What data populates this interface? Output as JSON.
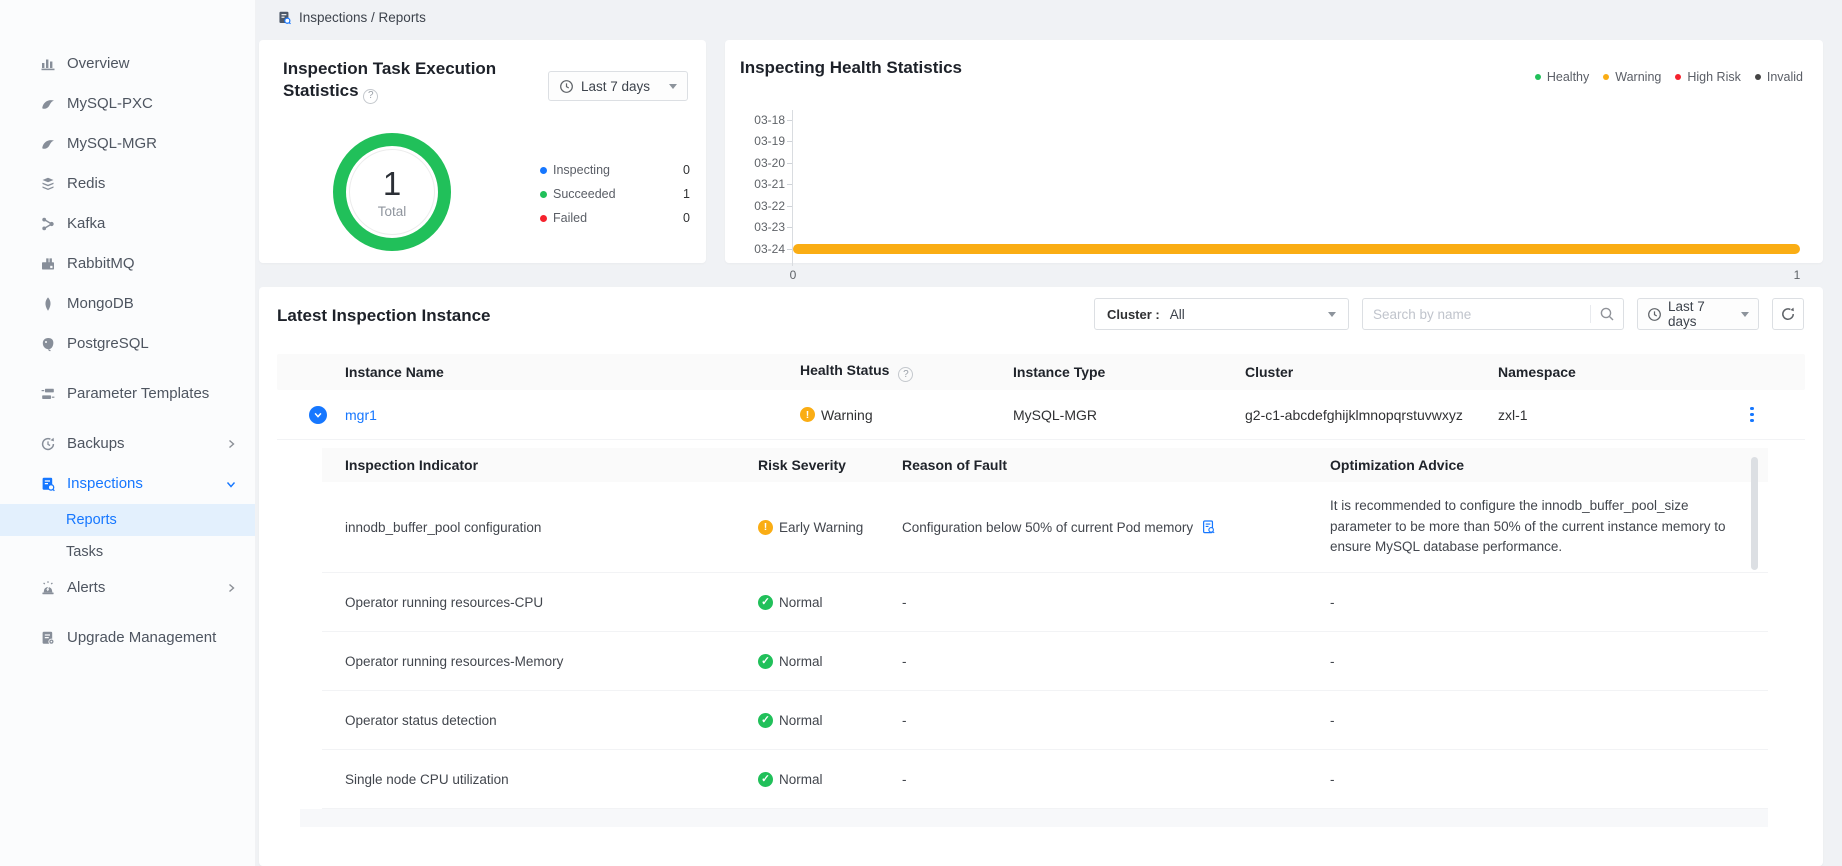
{
  "icons": {
    "help": "?",
    "warning_glyph": "!",
    "check_glyph": "✓"
  },
  "colors": {
    "primary": "#1677ff",
    "healthy_green": "#21c05a",
    "warning_orange": "#faad14",
    "high_risk_red": "#f5222d",
    "invalid_dark": "#454545",
    "selected_item_bg": "#e3f0fd"
  },
  "breadcrumb": {
    "text": "Inspections / Reports"
  },
  "sidebar": {
    "items": [
      {
        "label": "Overview"
      },
      {
        "label": "MySQL-PXC"
      },
      {
        "label": "MySQL-MGR"
      },
      {
        "label": "Redis"
      },
      {
        "label": "Kafka"
      },
      {
        "label": "RabbitMQ"
      },
      {
        "label": "MongoDB"
      },
      {
        "label": "PostgreSQL"
      },
      {
        "label": "Parameter Templates"
      },
      {
        "label": "Backups"
      },
      {
        "label": "Inspections"
      },
      {
        "label": "Reports"
      },
      {
        "label": "Tasks"
      },
      {
        "label": "Alerts"
      },
      {
        "label": "Upgrade Management"
      }
    ]
  },
  "task_card": {
    "title": "Inspection Task Execution Statistics",
    "time_filter": "Last 7 days",
    "donut_total_value": "1",
    "donut_total_label": "Total",
    "legend": [
      {
        "label": "Inspecting",
        "value": "0"
      },
      {
        "label": "Succeeded",
        "value": "1"
      },
      {
        "label": "Failed",
        "value": "0"
      }
    ],
    "chart_data": {
      "type": "pie",
      "subtype": "donut",
      "total": 1,
      "slices": [
        {
          "label": "Inspecting",
          "value": 0,
          "color": "#1677ff"
        },
        {
          "label": "Succeeded",
          "value": 1,
          "color": "#21c05a"
        },
        {
          "label": "Failed",
          "value": 0,
          "color": "#f5222d"
        }
      ]
    }
  },
  "health_card": {
    "title": "Inspecting Health Statistics",
    "chart_data": {
      "type": "bar",
      "orientation": "horizontal",
      "categories": [
        "03-18",
        "03-19",
        "03-20",
        "03-21",
        "03-22",
        "03-23",
        "03-24"
      ],
      "series": [
        {
          "name": "Healthy",
          "color": "#21c05a",
          "values": [
            0,
            0,
            0,
            0,
            0,
            0,
            0
          ]
        },
        {
          "name": "Warning",
          "color": "#faad14",
          "values": [
            0,
            0,
            0,
            0,
            0,
            0,
            1
          ]
        },
        {
          "name": "High Risk",
          "color": "#f5222d",
          "values": [
            0,
            0,
            0,
            0,
            0,
            0,
            0
          ]
        },
        {
          "name": "Invalid",
          "color": "#454545",
          "values": [
            0,
            0,
            0,
            0,
            0,
            0,
            0
          ]
        }
      ],
      "xlim": [
        0,
        1
      ],
      "x_tick_labels": [
        "0",
        "1"
      ],
      "legend_position": "top-right",
      "grid": false
    }
  },
  "table_section": {
    "title": "Latest Inspection Instance",
    "cluster_filter_label": "Cluster :",
    "cluster_filter_value": "All",
    "search_placeholder": "Search by name",
    "time_filter": "Last 7 days",
    "columns": {
      "instance_name": "Instance Name",
      "health_status": "Health Status",
      "instance_type": "Instance Type",
      "cluster": "Cluster",
      "namespace": "Namespace"
    },
    "row": {
      "name": "mgr1",
      "health_status": "Warning",
      "instance_type": "MySQL-MGR",
      "cluster": "g2-c1-abcdefghijklmnopqrstuvwxyz",
      "namespace": "zxl-1"
    },
    "detail": {
      "columns": {
        "indicator": "Inspection Indicator",
        "severity": "Risk Severity",
        "reason": "Reason of Fault",
        "advice": "Optimization Advice"
      },
      "rows": [
        {
          "indicator": "innodb_buffer_pool configuration",
          "severity": "Early Warning",
          "severity_type": "warning",
          "reason": "Configuration below 50% of current Pod memory",
          "advice": "It is recommended to configure the innodb_buffer_pool_size parameter to be more than 50% of the current instance memory to ensure MySQL database performance."
        },
        {
          "indicator": "Operator running resources-CPU",
          "severity": "Normal",
          "severity_type": "normal",
          "reason": "-",
          "advice": "-"
        },
        {
          "indicator": "Operator running resources-Memory",
          "severity": "Normal",
          "severity_type": "normal",
          "reason": "-",
          "advice": "-"
        },
        {
          "indicator": "Operator status detection",
          "severity": "Normal",
          "severity_type": "normal",
          "reason": "-",
          "advice": "-"
        },
        {
          "indicator": "Single node CPU utilization",
          "severity": "Normal",
          "severity_type": "normal",
          "reason": "-",
          "advice": "-"
        }
      ]
    }
  }
}
